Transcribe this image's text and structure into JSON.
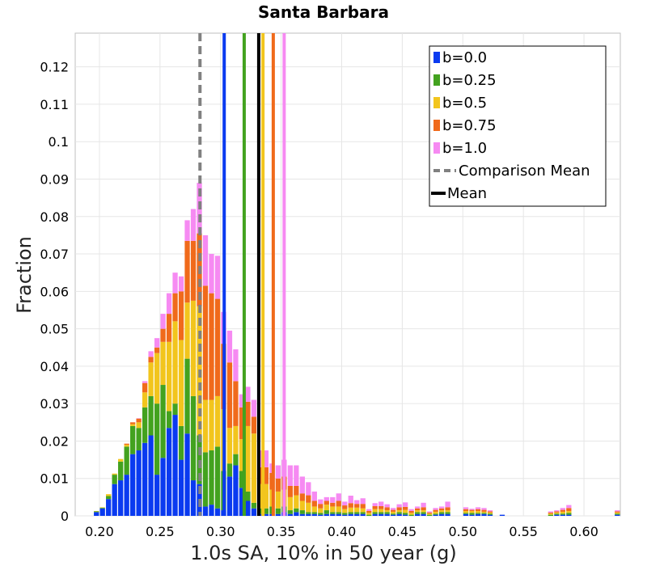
{
  "chart_data": {
    "type": "bar",
    "stacked": true,
    "title": "Santa Barbara",
    "xlabel": "1.0s SA, 10% in 50 year (g)",
    "ylabel": "Fraction",
    "xlim": [
      0.18,
      0.63
    ],
    "ylim": [
      0,
      0.129
    ],
    "x_ticks": [
      "0.20",
      "0.25",
      "0.30",
      "0.35",
      "0.40",
      "0.45",
      "0.50",
      "0.55",
      "0.60"
    ],
    "x_tick_values": [
      0.2,
      0.25,
      0.3,
      0.35,
      0.4,
      0.45,
      0.5,
      0.55,
      0.6
    ],
    "y_ticks": [
      "0",
      "0.01",
      "0.02",
      "0.03",
      "0.04",
      "0.05",
      "0.06",
      "0.07",
      "0.08",
      "0.09",
      "0.1",
      "0.11",
      "0.12"
    ],
    "y_tick_values": [
      0,
      0.01,
      0.02,
      0.03,
      0.04,
      0.05,
      0.06,
      0.07,
      0.08,
      0.09,
      0.1,
      0.11,
      0.12
    ],
    "grid": true,
    "legend_position": "top-right",
    "bin_width": 0.005,
    "bin_centers": [
      0.1875,
      0.1925,
      0.1975,
      0.2025,
      0.2075,
      0.2125,
      0.2175,
      0.2225,
      0.2275,
      0.2325,
      0.2375,
      0.2425,
      0.2475,
      0.2525,
      0.2575,
      0.2625,
      0.2675,
      0.2725,
      0.2775,
      0.2825,
      0.2875,
      0.2925,
      0.2975,
      0.3025,
      0.3075,
      0.3125,
      0.3175,
      0.3225,
      0.3275,
      0.3325,
      0.3375,
      0.3425,
      0.3475,
      0.3525,
      0.3575,
      0.3625,
      0.3675,
      0.3725,
      0.3775,
      0.3825,
      0.3875,
      0.3925,
      0.3975,
      0.4025,
      0.4075,
      0.4125,
      0.4175,
      0.4225,
      0.4275,
      0.4325,
      0.4375,
      0.4425,
      0.4475,
      0.4525,
      0.4575,
      0.4625,
      0.4675,
      0.4725,
      0.4775,
      0.4825,
      0.4875,
      0.4925,
      0.4975,
      0.5025,
      0.5075,
      0.5125,
      0.5175,
      0.5225,
      0.5275,
      0.5325,
      0.5375,
      0.5425,
      0.5475,
      0.5525,
      0.5575,
      0.5625,
      0.5675,
      0.5725,
      0.5775,
      0.5825,
      0.5875,
      0.5925,
      0.5975,
      0.6025,
      0.6075,
      0.6125,
      0.6175,
      0.6225,
      0.6275
    ],
    "series": [
      {
        "name": "b=0.0",
        "color": "#0a3af0",
        "values": [
          0,
          0,
          0.001,
          0.002,
          0.0045,
          0.0085,
          0.0095,
          0.011,
          0.0165,
          0.0175,
          0.0195,
          0.0215,
          0.011,
          0.0155,
          0.0235,
          0.027,
          0.015,
          0.022,
          0.0095,
          0.0085,
          0.0025,
          0.003,
          0.002,
          0.0015,
          0.0105,
          0.0135,
          0.0075,
          0.004,
          0.002,
          0.0005,
          0.0005,
          0.0005,
          0.0005,
          0.001,
          0.0005,
          0.001,
          0.0005,
          0.0005,
          0.0005,
          0.0003,
          0.0005,
          0.0005,
          0.0005,
          0.0003,
          0.0005,
          0.0005,
          0.0005,
          0,
          0.0005,
          0.0005,
          0.0005,
          0.0003,
          0.0005,
          0.0003,
          0,
          0.0005,
          0.0005,
          0,
          0.0003,
          0.0005,
          0.0005,
          0,
          0,
          0.0005,
          0.0003,
          0.0005,
          0.0005,
          0.0003,
          0,
          0.0003,
          0,
          0,
          0,
          0,
          0,
          0,
          0,
          0,
          0.0003,
          0.0003,
          0.0003,
          0,
          0,
          0,
          0,
          0,
          0,
          0,
          0.0003
        ]
      },
      {
        "name": "b=0.25",
        "color": "#43a21f",
        "values": [
          0,
          0,
          0.0002,
          0.0002,
          0.0008,
          0.0025,
          0.005,
          0.0075,
          0.0075,
          0.006,
          0.0095,
          0.0105,
          0.019,
          0.0195,
          0.0045,
          0.003,
          0.009,
          0.02,
          0.0225,
          0.013,
          0.0145,
          0.0145,
          0.0165,
          0.0105,
          0.0035,
          0.003,
          0.0045,
          0.0025,
          0.0015,
          0.0015,
          0.0015,
          0.002,
          0.0015,
          0.0015,
          0.001,
          0.001,
          0.001,
          0.0005,
          0.0005,
          0.0005,
          0.001,
          0.0005,
          0.0005,
          0.0005,
          0.0005,
          0.0005,
          0.0005,
          0.0003,
          0.0005,
          0.0005,
          0.0005,
          0.0003,
          0.0005,
          0.0005,
          0.0003,
          0.0005,
          0.0005,
          0.0003,
          0.0003,
          0.0005,
          0.0005,
          0,
          0,
          0.0003,
          0.0005,
          0.0003,
          0.0003,
          0.0003,
          0,
          0,
          0,
          0,
          0,
          0,
          0,
          0,
          0,
          0.0003,
          0.0003,
          0.0003,
          0.0005,
          0,
          0,
          0,
          0,
          0,
          0,
          0,
          0.0003
        ]
      },
      {
        "name": "b=0.5",
        "color": "#f2c51d",
        "values": [
          0,
          0,
          0.0001,
          0.0001,
          0.0005,
          0.0003,
          0.0007,
          0.0005,
          0.0005,
          0.0015,
          0.004,
          0.009,
          0.0135,
          0.0115,
          0.0185,
          0.022,
          0.023,
          0.015,
          0.0255,
          0.0345,
          0.014,
          0.0135,
          0.0135,
          0.0165,
          0.0095,
          0.0075,
          0.0085,
          0.0175,
          0.0185,
          0.0065,
          0.0065,
          0.0045,
          0.0045,
          0.0045,
          0.0035,
          0.0035,
          0.0025,
          0.0025,
          0.0015,
          0.0012,
          0.0015,
          0.0015,
          0.0015,
          0.001,
          0.0012,
          0.0012,
          0.001,
          0.0005,
          0.0008,
          0.0008,
          0.0005,
          0.0005,
          0.0005,
          0.0008,
          0.0005,
          0.0005,
          0.0005,
          0.0003,
          0.0005,
          0.0005,
          0.0005,
          0,
          0,
          0.0005,
          0.0005,
          0.0005,
          0.0003,
          0.0003,
          0,
          0,
          0,
          0,
          0,
          0,
          0,
          0,
          0,
          0.0003,
          0.0003,
          0.0005,
          0.0005,
          0,
          0,
          0,
          0,
          0,
          0,
          0,
          0.0003
        ]
      },
      {
        "name": "b=0.75",
        "color": "#f06a1b",
        "values": [
          0,
          0,
          0,
          0,
          0,
          0,
          0,
          0.0003,
          0.0005,
          0.001,
          0.0025,
          0.0015,
          0.0015,
          0.0035,
          0.0075,
          0.0075,
          0.013,
          0.0165,
          0.016,
          0.0195,
          0.0305,
          0.0285,
          0.026,
          0.0175,
          0.0175,
          0.012,
          0.0085,
          0.0065,
          0.0045,
          0.0045,
          0.0045,
          0.0045,
          0.0035,
          0.0035,
          0.003,
          0.0025,
          0.002,
          0.002,
          0.0015,
          0.0012,
          0.001,
          0.001,
          0.0015,
          0.001,
          0.0012,
          0.001,
          0.0012,
          0.0005,
          0.0008,
          0.0008,
          0.0008,
          0.0005,
          0.0008,
          0.0008,
          0.0005,
          0.0005,
          0.0008,
          0.0003,
          0.0005,
          0.0005,
          0.0008,
          0,
          0,
          0.0005,
          0.0003,
          0.0005,
          0.0005,
          0.0003,
          0,
          0,
          0,
          0,
          0,
          0,
          0,
          0,
          0,
          0.0003,
          0.0003,
          0.0005,
          0.0008,
          0,
          0,
          0,
          0,
          0,
          0,
          0,
          0.0003
        ]
      },
      {
        "name": "b=1.0",
        "color": "#f68af2",
        "values": [
          0,
          0,
          0,
          0,
          0,
          0,
          0,
          0,
          0,
          0.0001,
          0.0005,
          0.0015,
          0.0025,
          0.004,
          0.0055,
          0.0055,
          0.004,
          0.0055,
          0.0085,
          0.0135,
          0.0135,
          0.0105,
          0.0115,
          0.0085,
          0.0085,
          0.0085,
          0.0035,
          0.004,
          0.0045,
          0.0045,
          0.0045,
          0.0025,
          0.0035,
          0.0045,
          0.0055,
          0.0055,
          0.0045,
          0.0035,
          0.0025,
          0.0012,
          0.001,
          0.0015,
          0.002,
          0.001,
          0.002,
          0.001,
          0.0015,
          0.0005,
          0.0008,
          0.0012,
          0.0008,
          0.0005,
          0.0008,
          0.0012,
          0.0005,
          0.0005,
          0.0012,
          0.0003,
          0.0005,
          0.0005,
          0.0015,
          0,
          0,
          0.0005,
          0.0003,
          0.0005,
          0.0005,
          0.0003,
          0,
          0,
          0,
          0,
          0,
          0,
          0,
          0,
          0,
          0.0003,
          0.0003,
          0.0005,
          0.0008,
          0,
          0,
          0,
          0,
          0,
          0,
          0,
          0.0003
        ]
      }
    ],
    "mean_lines": [
      {
        "name": "b=0.0",
        "color": "#0a3af0",
        "x": 0.303
      },
      {
        "name": "b=0.25",
        "color": "#43a21f",
        "x": 0.3195
      },
      {
        "name": "b=0.5",
        "color": "#f2c51d",
        "x": 0.335
      },
      {
        "name": "b=0.75",
        "color": "#f06a1b",
        "x": 0.3435
      },
      {
        "name": "b=1.0",
        "color": "#f68af2",
        "x": 0.3525
      }
    ],
    "comparison_mean": {
      "name": "Comparison Mean",
      "color": "#808080",
      "x": 0.283,
      "style": "dashed"
    },
    "overall_mean": {
      "name": "Mean",
      "color": "#000000",
      "x": 0.3315,
      "style": "solid"
    }
  }
}
